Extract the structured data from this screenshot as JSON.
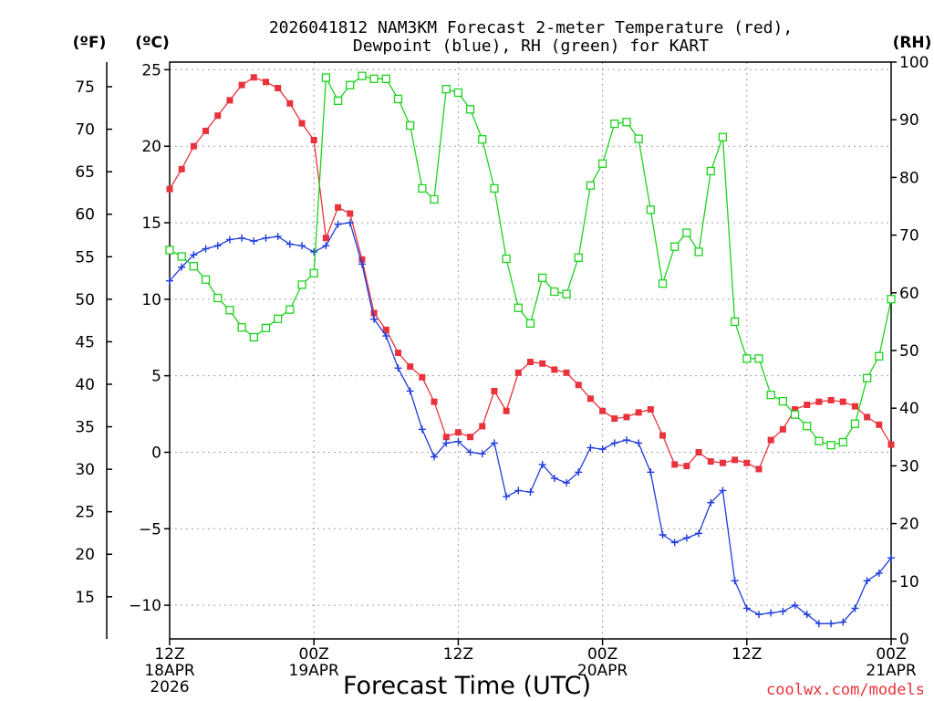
{
  "title_lines": [
    "2026041812 NAM3KM Forecast 2-meter Temperature (red),",
    "Dewpoint (blue), RH (green) for KART"
  ],
  "units": {
    "fahrenheit": "(ºF)",
    "celsius": "(ºC)",
    "rh": "(RH)"
  },
  "x_axis_label": "Forecast Time (UTC)",
  "credit": "coolwx.com/models",
  "colors": {
    "temperature": "#e8323c",
    "dewpoint": "#1e3cdc",
    "rh": "#1ed21e"
  },
  "chart_data": {
    "type": "line",
    "title": "2026041812 NAM3KM Forecast 2-meter Temperature (red), Dewpoint (blue), RH (green) for KART",
    "x_unit": "forecast hour",
    "x_range": [
      0,
      60
    ],
    "x_ticks": [
      {
        "hour": 0,
        "lines": [
          "12Z",
          "18APR",
          "2026"
        ]
      },
      {
        "hour": 12,
        "lines": [
          "00Z",
          "19APR"
        ]
      },
      {
        "hour": 24,
        "lines": [
          "12Z"
        ]
      },
      {
        "hour": 36,
        "lines": [
          "00Z",
          "20APR"
        ]
      },
      {
        "hour": 48,
        "lines": [
          "12Z"
        ]
      },
      {
        "hour": 60,
        "lines": [
          "00Z",
          "21APR"
        ]
      }
    ],
    "y_left_celsius": {
      "range": [
        -12.2,
        25.5
      ],
      "ticks": [
        25,
        20,
        15,
        10,
        5,
        0,
        -5,
        -10
      ]
    },
    "y_left_fahrenheit": {
      "ticks": [
        75,
        70,
        65,
        60,
        55,
        50,
        45,
        40,
        35,
        30,
        25,
        20,
        15
      ]
    },
    "y_right_rh": {
      "range": [
        0,
        100
      ],
      "ticks": [
        100,
        90,
        80,
        70,
        60,
        50,
        40,
        30,
        20,
        10,
        0
      ]
    },
    "series": [
      {
        "name": "2-meter Temperature",
        "units": "°C",
        "color": "#e8323c",
        "marker": "filled-square",
        "x": [
          0,
          1,
          2,
          3,
          4,
          5,
          6,
          7,
          8,
          9,
          10,
          11,
          12,
          13,
          14,
          15,
          16,
          17,
          18,
          19,
          20,
          21,
          22,
          23,
          24,
          25,
          26,
          27,
          28,
          29,
          30,
          31,
          32,
          33,
          34,
          35,
          36,
          37,
          38,
          39,
          40,
          41,
          42,
          43,
          44,
          45,
          46,
          47,
          48,
          49,
          50,
          51,
          52,
          53,
          54,
          55,
          56,
          57,
          58,
          59,
          60
        ],
        "values": [
          17.2,
          18.5,
          20.0,
          21.0,
          22.0,
          23.0,
          24.0,
          24.5,
          24.2,
          23.8,
          22.8,
          21.5,
          20.4,
          14.0,
          16.0,
          15.6,
          12.6,
          9.1,
          8.0,
          6.5,
          5.6,
          4.9,
          3.3,
          1.0,
          1.3,
          1.0,
          1.7,
          4.0,
          2.7,
          5.2,
          5.9,
          5.8,
          5.4,
          5.2,
          4.4,
          3.5,
          2.7,
          2.2,
          2.3,
          2.6,
          2.8,
          1.1,
          -0.8,
          -0.9,
          0.0,
          -0.6,
          -0.7,
          -0.5,
          -0.7,
          -1.1,
          0.8,
          1.5,
          2.8,
          3.1,
          3.3,
          3.4,
          3.3,
          3.0,
          2.3,
          1.8,
          0.5
        ]
      },
      {
        "name": "Dewpoint",
        "units": "°C",
        "color": "#1e3cdc",
        "marker": "plus",
        "x": [
          0,
          1,
          2,
          3,
          4,
          5,
          6,
          7,
          8,
          9,
          10,
          11,
          12,
          13,
          14,
          15,
          16,
          17,
          18,
          19,
          20,
          21,
          22,
          23,
          24,
          25,
          26,
          27,
          28,
          29,
          30,
          31,
          32,
          33,
          34,
          35,
          36,
          37,
          38,
          39,
          40,
          41,
          42,
          43,
          44,
          45,
          46,
          47,
          48,
          49,
          50,
          51,
          52,
          53,
          54,
          55,
          56,
          57,
          58,
          59,
          60
        ],
        "values": [
          11.2,
          12.1,
          12.9,
          13.3,
          13.5,
          13.9,
          14.0,
          13.8,
          14.0,
          14.1,
          13.6,
          13.5,
          13.1,
          13.5,
          14.9,
          15.0,
          12.3,
          8.7,
          7.6,
          5.5,
          4.0,
          1.5,
          -0.3,
          0.6,
          0.7,
          0.0,
          -0.1,
          0.6,
          -2.9,
          -2.5,
          -2.6,
          -0.8,
          -1.7,
          -2.0,
          -1.3,
          0.3,
          0.2,
          0.6,
          0.8,
          0.6,
          -1.3,
          -5.4,
          -5.9,
          -5.6,
          -5.3,
          -3.3,
          -2.5,
          -8.4,
          -10.2,
          -10.6,
          -10.5,
          -10.4,
          -10.0,
          -10.6,
          -11.2,
          -11.2,
          -11.1,
          -10.2,
          -8.4,
          -7.9,
          -6.9
        ]
      },
      {
        "name": "RH",
        "units": "%",
        "color": "#1ed21e",
        "marker": "open-square",
        "x": [
          0,
          1,
          2,
          3,
          4,
          5,
          6,
          7,
          8,
          9,
          10,
          11,
          12,
          13,
          14,
          15,
          16,
          17,
          18,
          19,
          20,
          21,
          22,
          23,
          24,
          25,
          26,
          27,
          28,
          29,
          30,
          31,
          32,
          33,
          34,
          35,
          36,
          37,
          38,
          39,
          40,
          41,
          42,
          43,
          44,
          45,
          46,
          47,
          48,
          49,
          50,
          51,
          52,
          53,
          54,
          55,
          56,
          57,
          58,
          59,
          60
        ],
        "values": [
          67.4,
          66.3,
          64.6,
          62.3,
          59.1,
          57.0,
          54.0,
          52.3,
          53.9,
          55.5,
          57.1,
          61.4,
          63.4,
          97.3,
          93.3,
          96.0,
          97.6,
          97.1,
          97.1,
          93.6,
          89.0,
          78.1,
          76.2,
          95.3,
          94.7,
          91.8,
          86.6,
          78.1,
          65.9,
          57.4,
          54.7,
          62.6,
          60.2,
          59.8,
          66.1,
          78.6,
          82.4,
          89.3,
          89.6,
          86.7,
          74.4,
          61.6,
          68.0,
          70.4,
          67.1,
          81.1,
          87.0,
          55.0,
          48.6,
          48.6,
          42.3,
          41.2,
          38.9,
          36.9,
          34.3,
          33.6,
          34.1,
          37.3,
          45.2,
          49.0,
          58.9
        ]
      }
    ],
    "grid": true,
    "legend": "none (series identified in title by color)"
  }
}
